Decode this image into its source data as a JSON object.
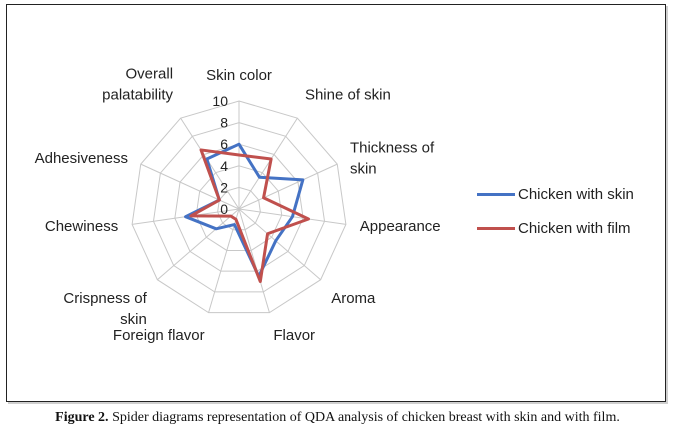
{
  "chart_data": {
    "type": "radar",
    "categories": [
      "Skin color",
      "Shine of skin",
      "Thickness of skin",
      "Appearance",
      "Aroma",
      "Flavor",
      "Foreign flavor",
      "Crispness of skin",
      "Chewiness",
      "Adhesiveness",
      "Overall palatability"
    ],
    "category_lines": [
      [
        "Skin color"
      ],
      [
        "Shine of skin"
      ],
      [
        "Thickness of",
        "skin"
      ],
      [
        "Appearance"
      ],
      [
        "Aroma"
      ],
      [
        "Flavor"
      ],
      [
        "Foreign flavor"
      ],
      [
        "Crispness of",
        "skin"
      ],
      [
        "Chewiness"
      ],
      [
        "Adhesiveness"
      ],
      [
        "Overall",
        "palatability"
      ]
    ],
    "rlim": [
      0,
      10
    ],
    "ticks": [
      "0",
      "2",
      "4",
      "6",
      "8",
      "10"
    ],
    "grid": true,
    "legend_position": "right",
    "series": [
      {
        "name": "Chicken with skin",
        "color": "#4472C4",
        "values": [
          6.0,
          3.5,
          6.5,
          5.0,
          4.5,
          6.5,
          1.5,
          2.8,
          5.0,
          2.0,
          5.5
        ]
      },
      {
        "name": "Chicken with film",
        "color": "#C0504D",
        "values": [
          5.0,
          5.5,
          2.5,
          6.5,
          3.5,
          7.0,
          1.0,
          1.0,
          4.5,
          2.0,
          6.5
        ]
      }
    ]
  },
  "caption": {
    "label": "Figure 2.",
    "text": " Spider diagrams representation of QDA analysis of chicken breast with skin and with film."
  }
}
